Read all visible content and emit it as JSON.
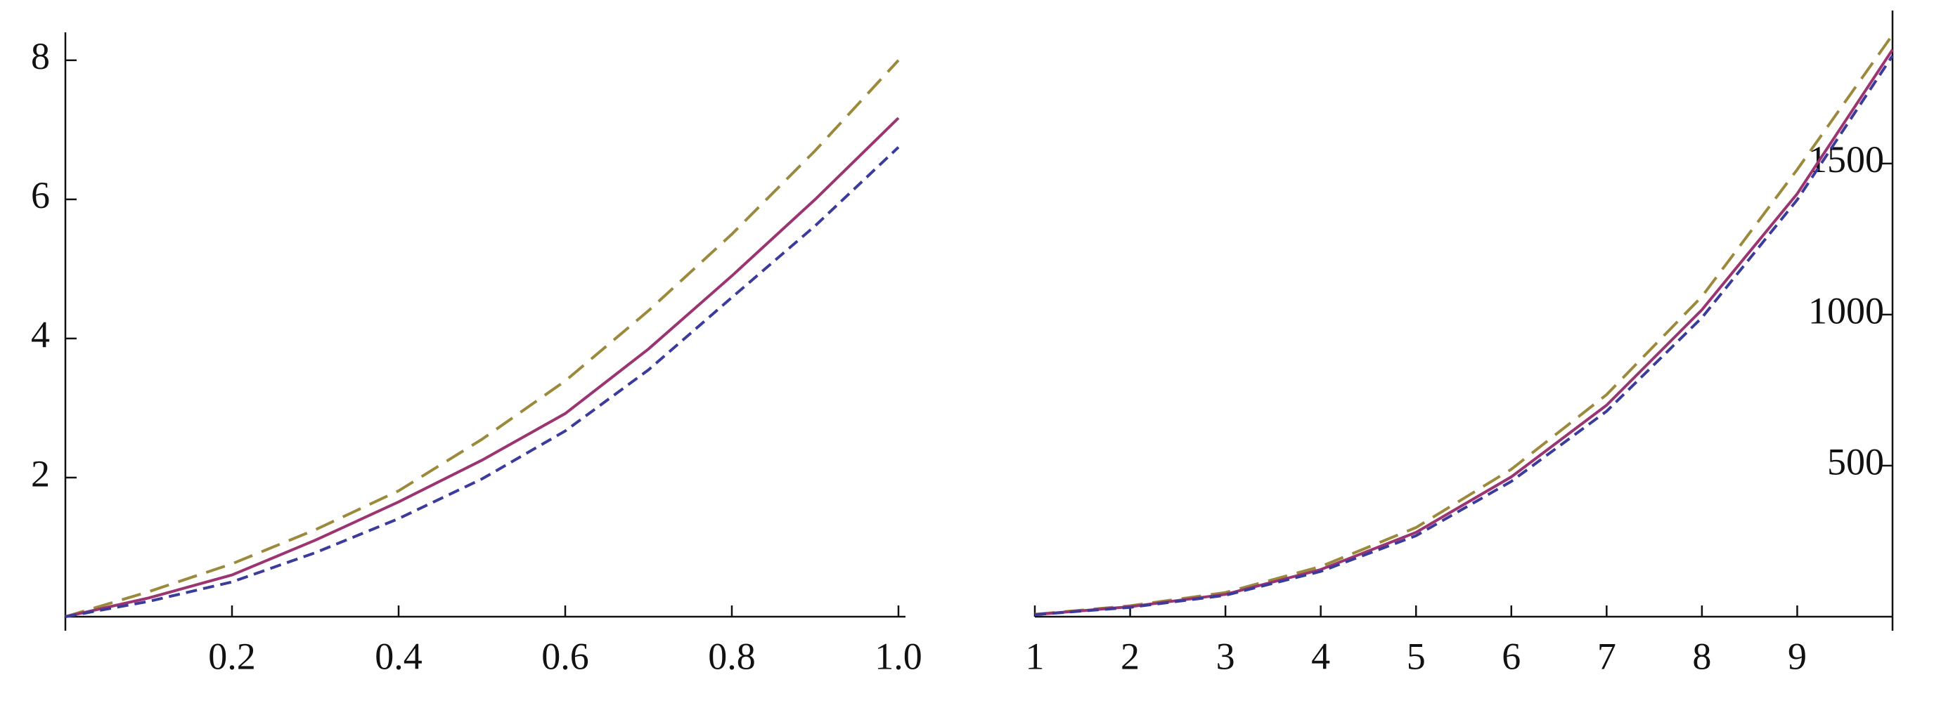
{
  "chart_data": [
    {
      "type": "line",
      "x": [
        0,
        0.1,
        0.2,
        0.3,
        0.4,
        0.5,
        0.6,
        0.7,
        0.8,
        0.9,
        1.0
      ],
      "series": [
        {
          "color": "#9c8a3c",
          "dash": "28 14",
          "values": [
            0,
            0.36,
            0.76,
            1.25,
            1.81,
            2.55,
            3.39,
            4.4,
            5.5,
            6.7,
            8.0
          ]
        },
        {
          "color": "#9b3470",
          "dash": "none",
          "values": [
            0,
            0.27,
            0.6,
            1.1,
            1.65,
            2.25,
            2.92,
            3.85,
            4.9,
            6.0,
            7.17
          ]
        },
        {
          "color": "#3b3b9c",
          "dash": "16 9",
          "values": [
            0,
            0.22,
            0.5,
            0.92,
            1.41,
            1.98,
            2.67,
            3.55,
            4.59,
            5.62,
            6.75
          ]
        }
      ],
      "xlim": [
        0,
        1.0
      ],
      "ylim": [
        0,
        8.2
      ],
      "xticks": [
        0.2,
        0.4,
        0.6,
        0.8,
        {
          "value": 1.0,
          "label": "1.0"
        }
      ],
      "yticks": [
        2,
        4,
        6,
        8
      ],
      "y_axis_side": "left"
    },
    {
      "type": "line",
      "x": [
        1,
        2,
        3,
        4,
        5,
        6,
        7,
        8,
        9,
        10
      ],
      "series": [
        {
          "color": "#9c8a3c",
          "dash": "28 14",
          "values": [
            8,
            36,
            80,
            166,
            295,
            488,
            735,
            1060,
            1480,
            1926
          ]
        },
        {
          "color": "#9b3470",
          "dash": "none",
          "values": [
            7,
            33,
            74,
            156,
            279,
            463,
            700,
            1016,
            1400,
            1877
          ]
        },
        {
          "color": "#3b3b9c",
          "dash": "16 9",
          "values": [
            6.75,
            31,
            71,
            150,
            268,
            448,
            680,
            990,
            1380,
            1857
          ]
        }
      ],
      "xlim": [
        1,
        10
      ],
      "ylim": [
        0,
        1960
      ],
      "xticks": [
        1,
        2,
        3,
        4,
        5,
        6,
        7,
        8,
        9
      ],
      "yticks": [
        500,
        1000,
        1500
      ],
      "y_axis_side": "right"
    }
  ]
}
